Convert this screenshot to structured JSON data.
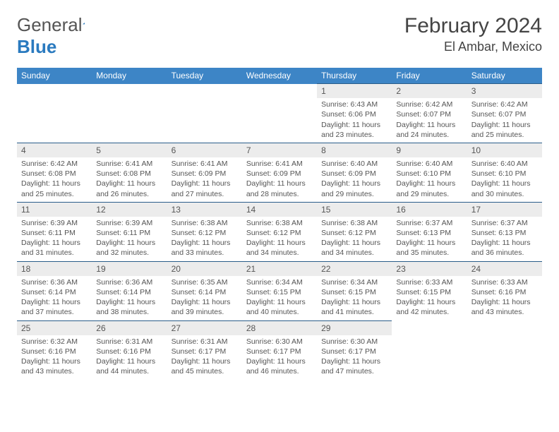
{
  "logo": {
    "text1": "General",
    "text2": "Blue"
  },
  "title": "February 2024",
  "location": "El Ambar, Mexico",
  "colors": {
    "header_bg": "#3d85c6",
    "header_text": "#ffffff",
    "daynum_bg": "#ececec",
    "border": "#2a5d8a",
    "text": "#555555",
    "logo_blue": "#2a7abf"
  },
  "weekdays": [
    "Sunday",
    "Monday",
    "Tuesday",
    "Wednesday",
    "Thursday",
    "Friday",
    "Saturday"
  ],
  "weeks": [
    [
      null,
      null,
      null,
      null,
      {
        "day": "1",
        "sunrise": "Sunrise: 6:43 AM",
        "sunset": "Sunset: 6:06 PM",
        "daylight": "Daylight: 11 hours and 23 minutes."
      },
      {
        "day": "2",
        "sunrise": "Sunrise: 6:42 AM",
        "sunset": "Sunset: 6:07 PM",
        "daylight": "Daylight: 11 hours and 24 minutes."
      },
      {
        "day": "3",
        "sunrise": "Sunrise: 6:42 AM",
        "sunset": "Sunset: 6:07 PM",
        "daylight": "Daylight: 11 hours and 25 minutes."
      }
    ],
    [
      {
        "day": "4",
        "sunrise": "Sunrise: 6:42 AM",
        "sunset": "Sunset: 6:08 PM",
        "daylight": "Daylight: 11 hours and 25 minutes."
      },
      {
        "day": "5",
        "sunrise": "Sunrise: 6:41 AM",
        "sunset": "Sunset: 6:08 PM",
        "daylight": "Daylight: 11 hours and 26 minutes."
      },
      {
        "day": "6",
        "sunrise": "Sunrise: 6:41 AM",
        "sunset": "Sunset: 6:09 PM",
        "daylight": "Daylight: 11 hours and 27 minutes."
      },
      {
        "day": "7",
        "sunrise": "Sunrise: 6:41 AM",
        "sunset": "Sunset: 6:09 PM",
        "daylight": "Daylight: 11 hours and 28 minutes."
      },
      {
        "day": "8",
        "sunrise": "Sunrise: 6:40 AM",
        "sunset": "Sunset: 6:09 PM",
        "daylight": "Daylight: 11 hours and 29 minutes."
      },
      {
        "day": "9",
        "sunrise": "Sunrise: 6:40 AM",
        "sunset": "Sunset: 6:10 PM",
        "daylight": "Daylight: 11 hours and 29 minutes."
      },
      {
        "day": "10",
        "sunrise": "Sunrise: 6:40 AM",
        "sunset": "Sunset: 6:10 PM",
        "daylight": "Daylight: 11 hours and 30 minutes."
      }
    ],
    [
      {
        "day": "11",
        "sunrise": "Sunrise: 6:39 AM",
        "sunset": "Sunset: 6:11 PM",
        "daylight": "Daylight: 11 hours and 31 minutes."
      },
      {
        "day": "12",
        "sunrise": "Sunrise: 6:39 AM",
        "sunset": "Sunset: 6:11 PM",
        "daylight": "Daylight: 11 hours and 32 minutes."
      },
      {
        "day": "13",
        "sunrise": "Sunrise: 6:38 AM",
        "sunset": "Sunset: 6:12 PM",
        "daylight": "Daylight: 11 hours and 33 minutes."
      },
      {
        "day": "14",
        "sunrise": "Sunrise: 6:38 AM",
        "sunset": "Sunset: 6:12 PM",
        "daylight": "Daylight: 11 hours and 34 minutes."
      },
      {
        "day": "15",
        "sunrise": "Sunrise: 6:38 AM",
        "sunset": "Sunset: 6:12 PM",
        "daylight": "Daylight: 11 hours and 34 minutes."
      },
      {
        "day": "16",
        "sunrise": "Sunrise: 6:37 AM",
        "sunset": "Sunset: 6:13 PM",
        "daylight": "Daylight: 11 hours and 35 minutes."
      },
      {
        "day": "17",
        "sunrise": "Sunrise: 6:37 AM",
        "sunset": "Sunset: 6:13 PM",
        "daylight": "Daylight: 11 hours and 36 minutes."
      }
    ],
    [
      {
        "day": "18",
        "sunrise": "Sunrise: 6:36 AM",
        "sunset": "Sunset: 6:14 PM",
        "daylight": "Daylight: 11 hours and 37 minutes."
      },
      {
        "day": "19",
        "sunrise": "Sunrise: 6:36 AM",
        "sunset": "Sunset: 6:14 PM",
        "daylight": "Daylight: 11 hours and 38 minutes."
      },
      {
        "day": "20",
        "sunrise": "Sunrise: 6:35 AM",
        "sunset": "Sunset: 6:14 PM",
        "daylight": "Daylight: 11 hours and 39 minutes."
      },
      {
        "day": "21",
        "sunrise": "Sunrise: 6:34 AM",
        "sunset": "Sunset: 6:15 PM",
        "daylight": "Daylight: 11 hours and 40 minutes."
      },
      {
        "day": "22",
        "sunrise": "Sunrise: 6:34 AM",
        "sunset": "Sunset: 6:15 PM",
        "daylight": "Daylight: 11 hours and 41 minutes."
      },
      {
        "day": "23",
        "sunrise": "Sunrise: 6:33 AM",
        "sunset": "Sunset: 6:15 PM",
        "daylight": "Daylight: 11 hours and 42 minutes."
      },
      {
        "day": "24",
        "sunrise": "Sunrise: 6:33 AM",
        "sunset": "Sunset: 6:16 PM",
        "daylight": "Daylight: 11 hours and 43 minutes."
      }
    ],
    [
      {
        "day": "25",
        "sunrise": "Sunrise: 6:32 AM",
        "sunset": "Sunset: 6:16 PM",
        "daylight": "Daylight: 11 hours and 43 minutes."
      },
      {
        "day": "26",
        "sunrise": "Sunrise: 6:31 AM",
        "sunset": "Sunset: 6:16 PM",
        "daylight": "Daylight: 11 hours and 44 minutes."
      },
      {
        "day": "27",
        "sunrise": "Sunrise: 6:31 AM",
        "sunset": "Sunset: 6:17 PM",
        "daylight": "Daylight: 11 hours and 45 minutes."
      },
      {
        "day": "28",
        "sunrise": "Sunrise: 6:30 AM",
        "sunset": "Sunset: 6:17 PM",
        "daylight": "Daylight: 11 hours and 46 minutes."
      },
      {
        "day": "29",
        "sunrise": "Sunrise: 6:30 AM",
        "sunset": "Sunset: 6:17 PM",
        "daylight": "Daylight: 11 hours and 47 minutes."
      },
      null,
      null
    ]
  ]
}
